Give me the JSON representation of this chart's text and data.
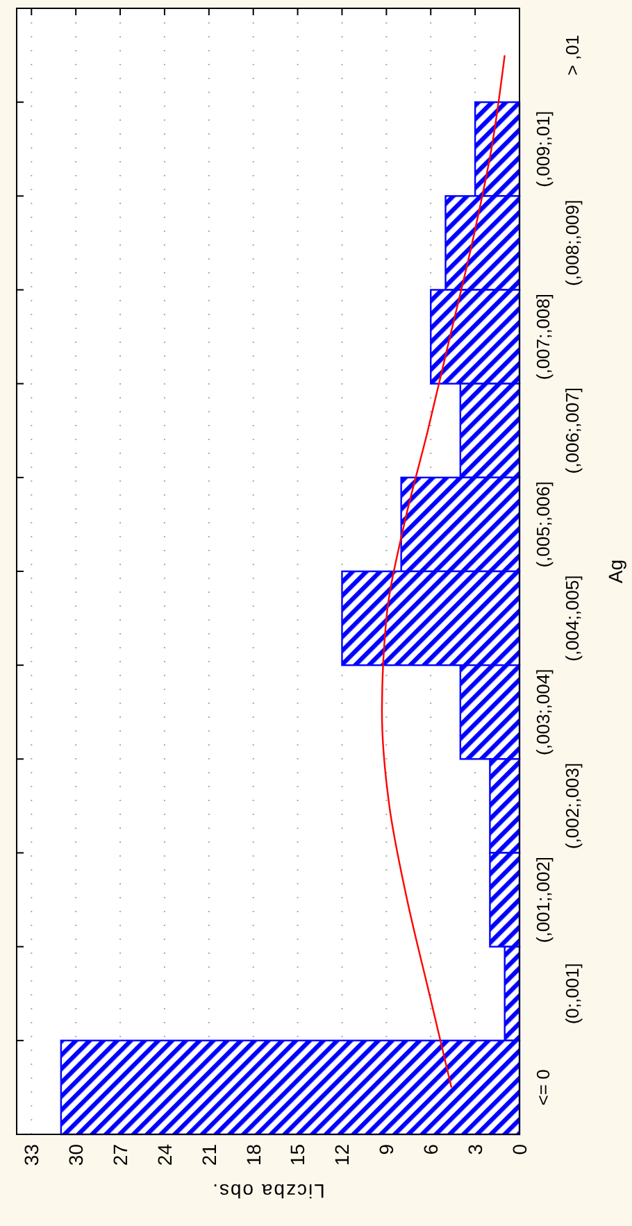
{
  "chart_data": {
    "type": "bar",
    "orientation": "horizontal",
    "xlabel": "Liczba obs.",
    "ylabel": "Ag",
    "categories": [
      "> ,01",
      "(,009;,01]",
      "(,008;,009]",
      "(,007;,008]",
      "(,006;,007]",
      "(,005;,006]",
      "(,004;,005]",
      "(,003;,004]",
      "(,002;,003]",
      "(,001;,002]",
      "(0;,001]",
      "<= 0"
    ],
    "series": [
      {
        "color": "#0000ff",
        "values": [
          0,
          3,
          5,
          6,
          4,
          8,
          12,
          4,
          2,
          2,
          1,
          31
        ]
      },
      {
        "type": "line",
        "color": "#ff0000",
        "values": [
          1.0,
          1.9,
          3.2,
          4.7,
          6.2,
          7.8,
          9.0,
          9.3,
          8.8,
          7.6,
          6.1,
          4.6
        ]
      }
    ],
    "xlim": [
      34,
      0
    ],
    "xticks": [
      0,
      3,
      6,
      9,
      12,
      15,
      18,
      21,
      24,
      27,
      30,
      33
    ],
    "grid": "x"
  }
}
